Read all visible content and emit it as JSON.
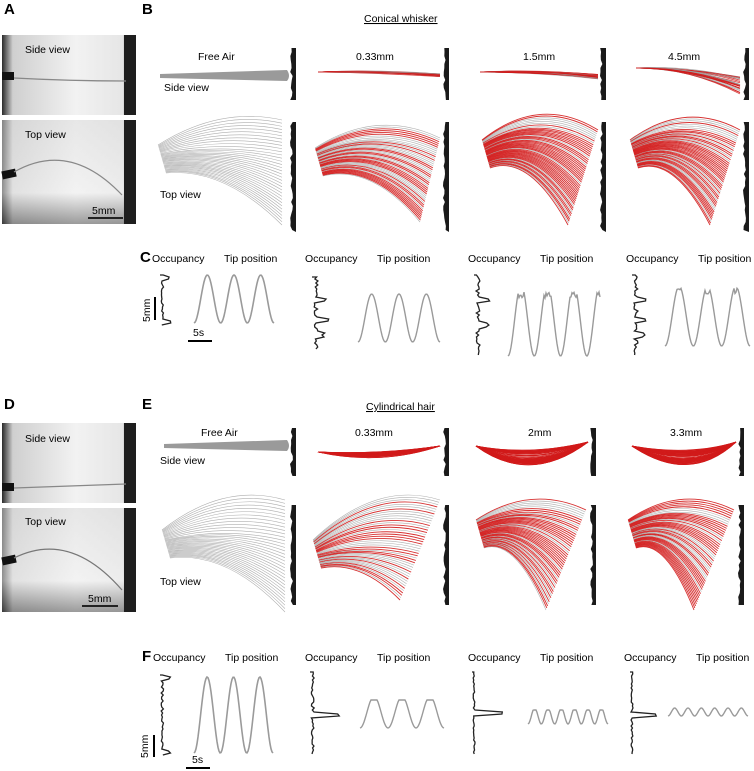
{
  "panels": {
    "A": {
      "letter": "A",
      "side_label": "Side view",
      "top_label": "Top view",
      "scale": "5mm"
    },
    "B": {
      "letter": "B",
      "title": "Conical whisker",
      "conditions": [
        "Free Air",
        "0.33mm",
        "1.5mm",
        "4.5mm"
      ],
      "side_label": "Side view",
      "top_label": "Top view"
    },
    "C": {
      "letter": "C",
      "occ_label": "Occupancy",
      "tip_label": "Tip position",
      "scale_y": "5mm",
      "scale_x": "5s"
    },
    "D": {
      "letter": "D",
      "side_label": "Side view",
      "top_label": "Top view",
      "scale": "5mm"
    },
    "E": {
      "letter": "E",
      "title": "Cylindrical hair",
      "conditions": [
        "Free Air",
        "0.33mm",
        "2mm",
        "3.3mm"
      ],
      "side_label": "Side view",
      "top_label": "Top view"
    },
    "F": {
      "letter": "F",
      "occ_label": "Occupancy",
      "tip_label": "Tip position",
      "scale_y": "5mm",
      "scale_x": "5s"
    }
  },
  "colors": {
    "red": "#d11a1a",
    "gray": "#9a9a9a",
    "dark": "#222222"
  }
}
